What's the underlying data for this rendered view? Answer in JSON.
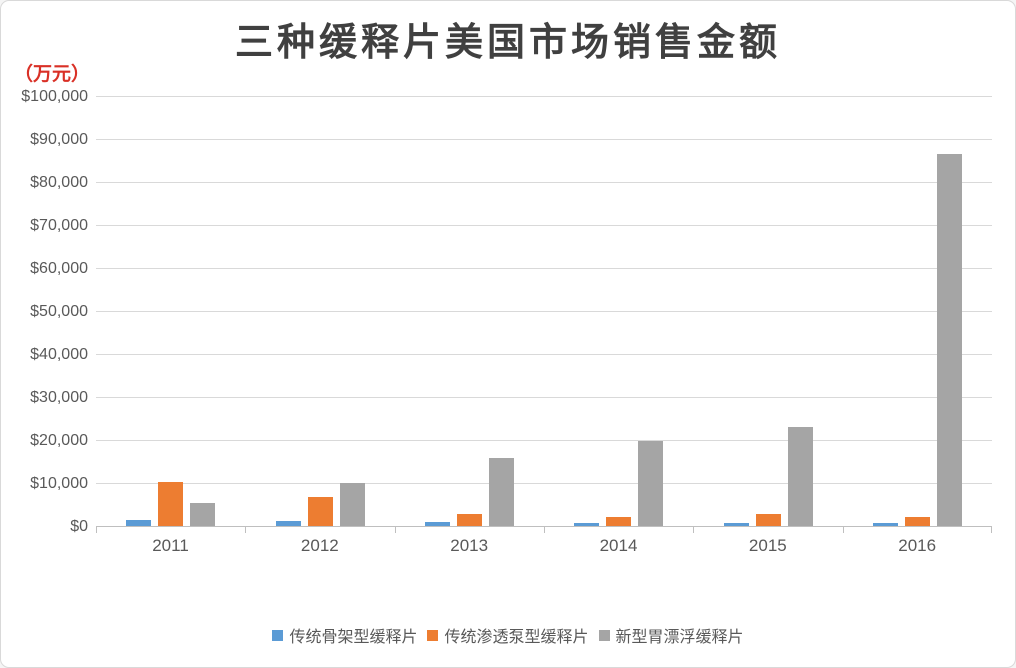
{
  "title": "三种缓释片美国市场销售金额",
  "unit_label": "（万元）",
  "colors": {
    "title_text": "#404040",
    "unit_label_red": "#d93026",
    "axis_text": "#595959",
    "gridline": "#d9d9d9",
    "axis_line": "#bfbfbf",
    "series_blue": "#5b9bd5",
    "series_orange": "#ed7d31",
    "series_gray": "#a5a5a5"
  },
  "chart_data": {
    "type": "bar",
    "title": "三种缓释片美国市场销售金额",
    "unit": "（万元）",
    "xlabel": "",
    "ylabel": "（万元）",
    "ylim": [
      0,
      100000
    ],
    "grid": true,
    "legend_position": "bottom",
    "categories": [
      "2011",
      "2012",
      "2013",
      "2014",
      "2015",
      "2016"
    ],
    "series": [
      {
        "name": "传统骨架型缓释片",
        "color": "#5b9bd5",
        "values": [
          1500,
          1100,
          1000,
          800,
          700,
          700
        ]
      },
      {
        "name": "传统渗透泵型缓释片",
        "color": "#ed7d31",
        "values": [
          10300,
          6700,
          2700,
          2200,
          2700,
          2100
        ]
      },
      {
        "name": "新型胃漂浮缓释片",
        "color": "#a5a5a5",
        "values": [
          5400,
          10000,
          15800,
          19800,
          23000,
          86500
        ]
      }
    ],
    "y_ticks": [
      {
        "value": 0,
        "label": "$0"
      },
      {
        "value": 10000,
        "label": "$10,000"
      },
      {
        "value": 20000,
        "label": "$20,000"
      },
      {
        "value": 30000,
        "label": "$30,000"
      },
      {
        "value": 40000,
        "label": "$40,000"
      },
      {
        "value": 50000,
        "label": "$50,000"
      },
      {
        "value": 60000,
        "label": "$60,000"
      },
      {
        "value": 70000,
        "label": "$70,000"
      },
      {
        "value": 80000,
        "label": "$80,000"
      },
      {
        "value": 90000,
        "label": "$90,000"
      },
      {
        "value": 100000,
        "label": "$100,000"
      }
    ]
  }
}
